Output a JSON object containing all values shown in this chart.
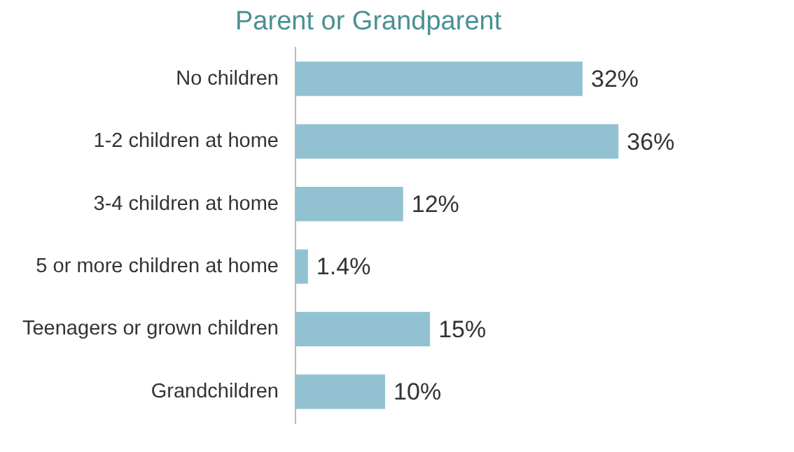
{
  "chart_data": {
    "type": "bar",
    "orientation": "horizontal",
    "title": "Parent or Grandparent",
    "categories": [
      "No children",
      "1-2 children at home",
      "3-4 children at home",
      "5 or more children at home",
      "Teenagers or grown children",
      "Grandchildren"
    ],
    "values": [
      32,
      36,
      12,
      1.4,
      15,
      10
    ],
    "value_labels": [
      "32%",
      "36%",
      "12%",
      "1.4%",
      "15%",
      "10%"
    ],
    "color": "#92c2d2",
    "grid": false,
    "legend": false
  }
}
